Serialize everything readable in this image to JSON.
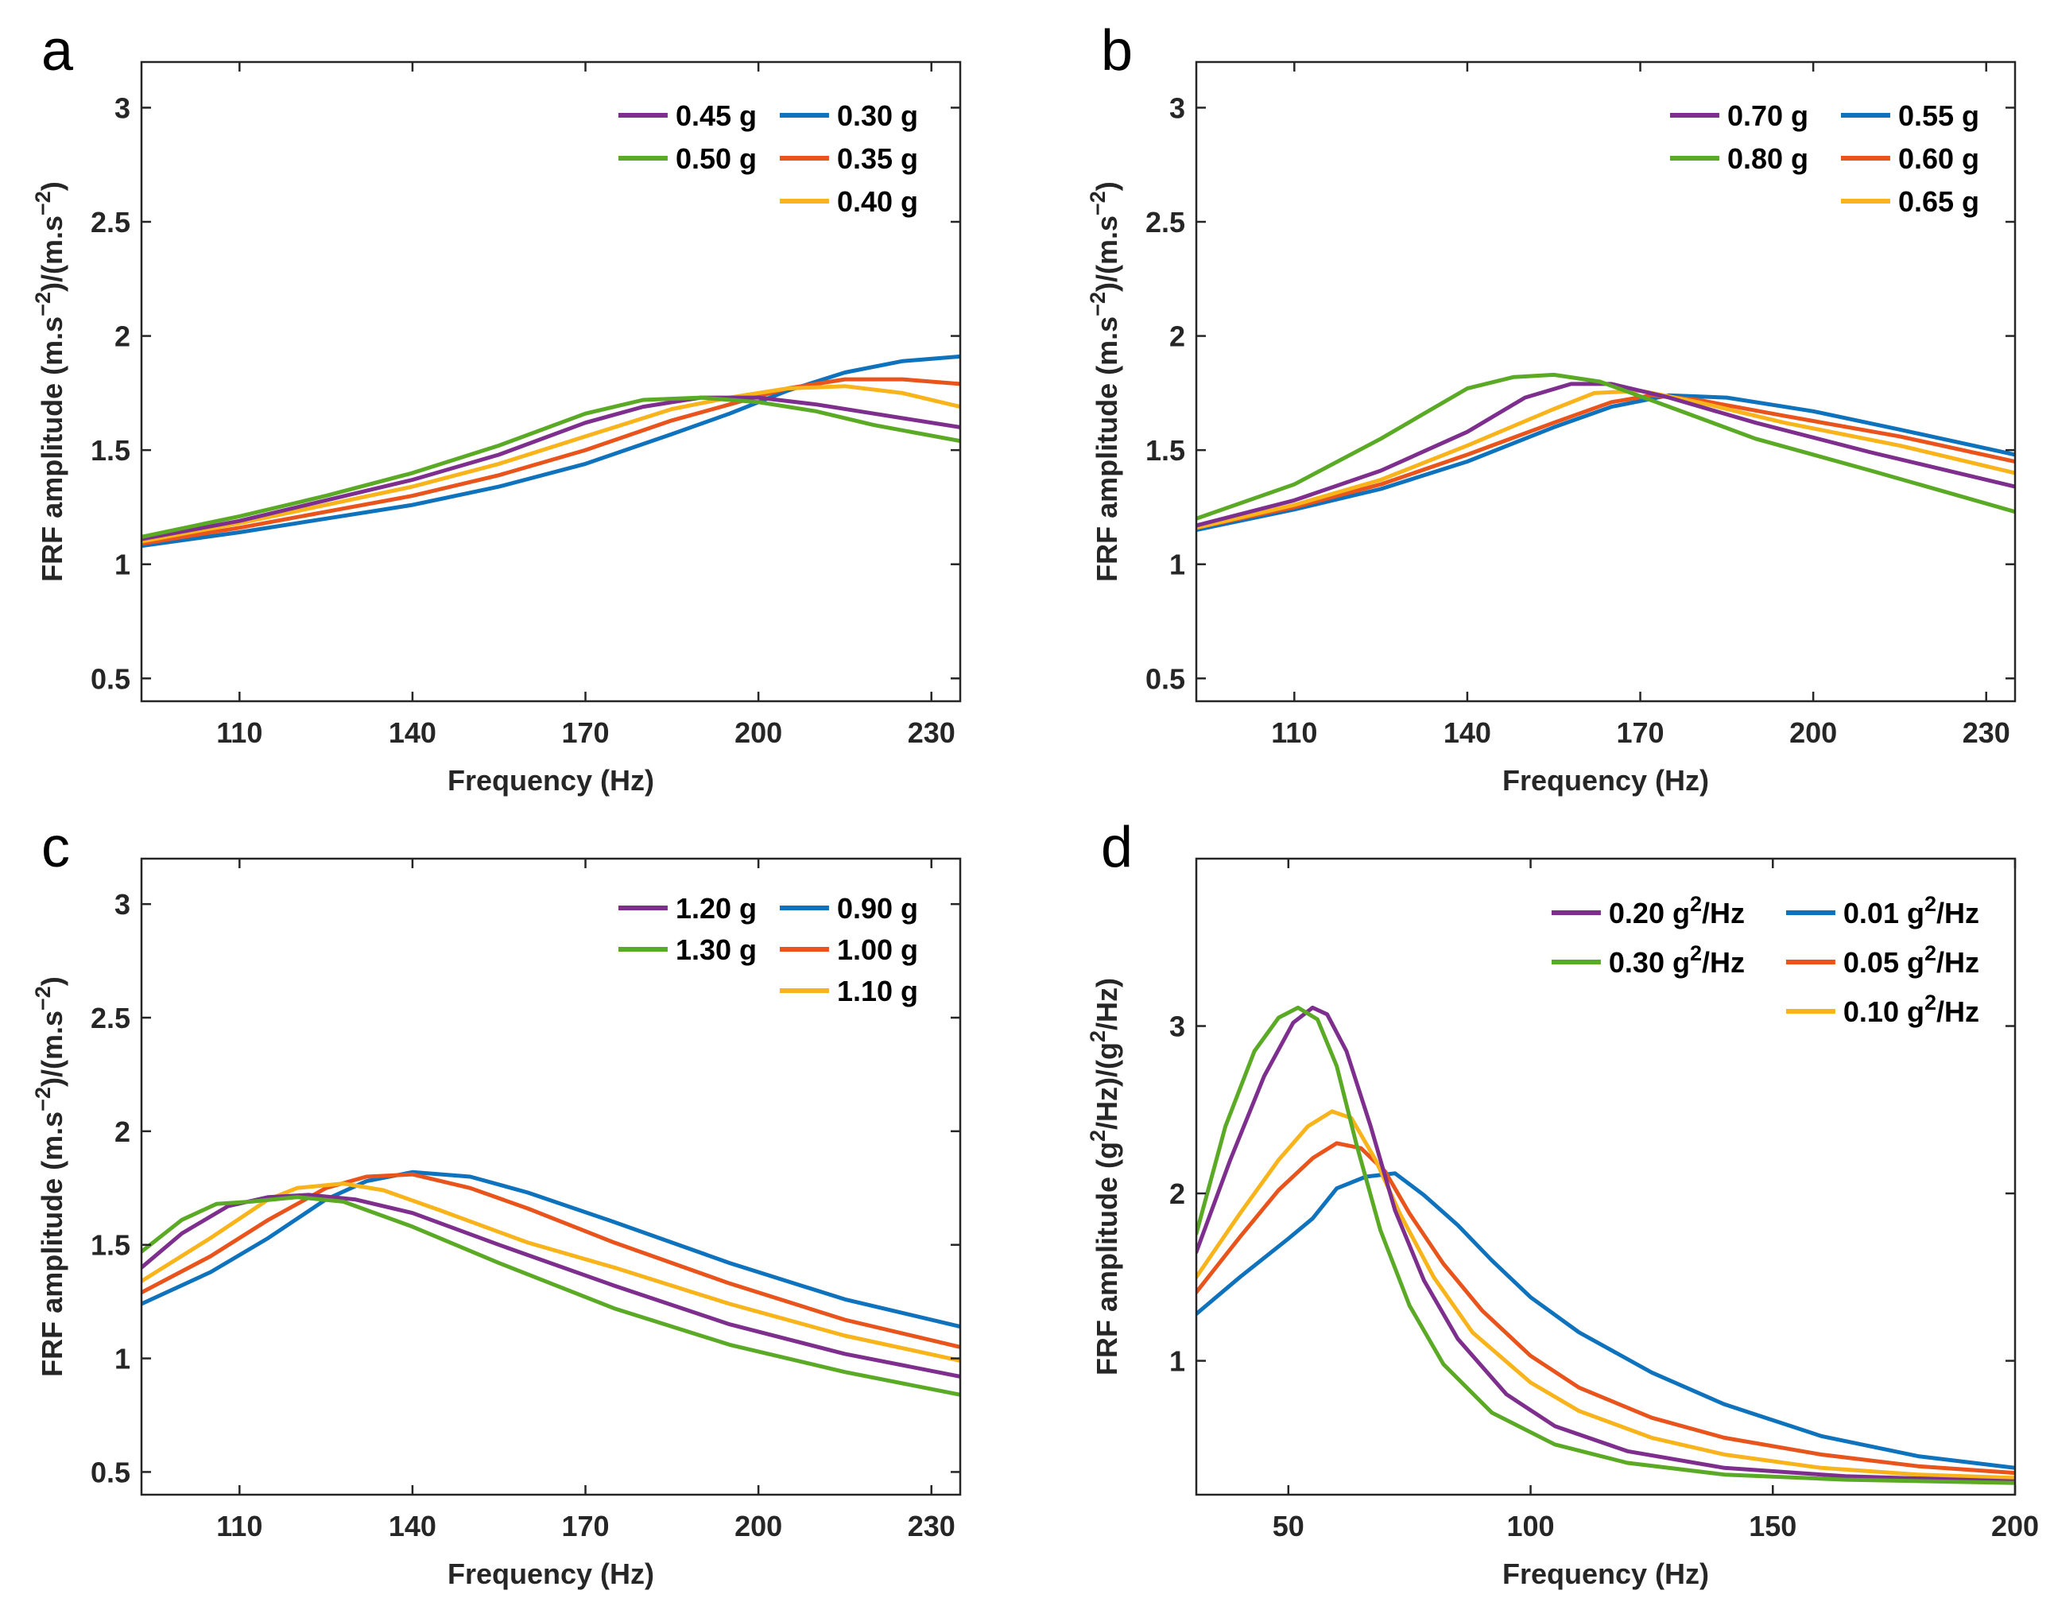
{
  "figure": {
    "description_free": true
  },
  "colors": {
    "purple": "#7E2F8E",
    "green": "#5BAA26",
    "blue": "#0E72BD",
    "red": "#E8541B",
    "yellow": "#F8B41A",
    "axis": "#262626"
  },
  "chart_data": [
    {
      "type": "line",
      "panel": "a",
      "xlabel": "Frequency (Hz)",
      "ylabel": "FRF amplitude (m.s⁻²)/(m.s⁻²)",
      "xlim": [
        93,
        235
      ],
      "ylim": [
        0.4,
        3.2
      ],
      "xticks": [
        110,
        140,
        170,
        200,
        230
      ],
      "yticks": [
        0.5,
        1,
        1.5,
        2,
        2.5,
        3
      ],
      "ytick_labels": [
        "0.5",
        "1",
        "1.5",
        "2",
        "2.5",
        "3"
      ],
      "legend": [
        {
          "label": "0.45 g",
          "color": "#7E2F8E",
          "col": 0,
          "row": 0
        },
        {
          "label": "0.50 g",
          "color": "#5BAA26",
          "col": 0,
          "row": 1
        },
        {
          "label": "0.30 g",
          "color": "#0E72BD",
          "col": 1,
          "row": 0
        },
        {
          "label": "0.35 g",
          "color": "#E8541B",
          "col": 1,
          "row": 1
        },
        {
          "label": "0.40 g",
          "color": "#F8B41A",
          "col": 1,
          "row": 2
        }
      ],
      "series": [
        {
          "name": "0.30 g",
          "color": "#0E72BD",
          "x": [
            93,
            110,
            125,
            140,
            155,
            170,
            185,
            195,
            205,
            215,
            225,
            235
          ],
          "y": [
            1.08,
            1.14,
            1.2,
            1.26,
            1.34,
            1.44,
            1.57,
            1.66,
            1.76,
            1.84,
            1.89,
            1.91
          ]
        },
        {
          "name": "0.35 g",
          "color": "#E8541B",
          "x": [
            93,
            110,
            125,
            140,
            155,
            170,
            185,
            195,
            205,
            215,
            225,
            235
          ],
          "y": [
            1.09,
            1.16,
            1.23,
            1.3,
            1.39,
            1.5,
            1.63,
            1.7,
            1.77,
            1.81,
            1.81,
            1.79
          ]
        },
        {
          "name": "0.40 g",
          "color": "#F8B41A",
          "x": [
            93,
            110,
            125,
            140,
            155,
            170,
            185,
            195,
            205,
            215,
            225,
            235
          ],
          "y": [
            1.1,
            1.18,
            1.26,
            1.34,
            1.44,
            1.56,
            1.68,
            1.73,
            1.77,
            1.78,
            1.75,
            1.69
          ]
        },
        {
          "name": "0.45 g",
          "color": "#7E2F8E",
          "x": [
            93,
            110,
            125,
            140,
            155,
            170,
            180,
            190,
            200,
            210,
            220,
            235
          ],
          "y": [
            1.11,
            1.19,
            1.28,
            1.37,
            1.48,
            1.62,
            1.69,
            1.73,
            1.73,
            1.7,
            1.66,
            1.6
          ]
        },
        {
          "name": "0.50 g",
          "color": "#5BAA26",
          "x": [
            93,
            110,
            125,
            140,
            155,
            170,
            180,
            190,
            200,
            210,
            220,
            235
          ],
          "y": [
            1.12,
            1.21,
            1.3,
            1.4,
            1.52,
            1.66,
            1.72,
            1.73,
            1.71,
            1.67,
            1.61,
            1.54
          ]
        }
      ]
    },
    {
      "type": "line",
      "panel": "b",
      "xlabel": "Frequency (Hz)",
      "ylabel": "FRF amplitude (m.s⁻²)/(m.s⁻²)",
      "xlim": [
        93,
        235
      ],
      "ylim": [
        0.4,
        3.2
      ],
      "xticks": [
        110,
        140,
        170,
        200,
        230
      ],
      "yticks": [
        0.5,
        1,
        1.5,
        2,
        2.5,
        3
      ],
      "ytick_labels": [
        "0.5",
        "1",
        "1.5",
        "2",
        "2.5",
        "3"
      ],
      "legend": [
        {
          "label": "0.70 g",
          "color": "#7E2F8E",
          "col": 0,
          "row": 0
        },
        {
          "label": "0.80 g",
          "color": "#5BAA26",
          "col": 0,
          "row": 1
        },
        {
          "label": "0.55 g",
          "color": "#0E72BD",
          "col": 1,
          "row": 0
        },
        {
          "label": "0.60 g",
          "color": "#E8541B",
          "col": 1,
          "row": 1
        },
        {
          "label": "0.65 g",
          "color": "#F8B41A",
          "col": 1,
          "row": 2
        }
      ],
      "series": [
        {
          "name": "0.55 g",
          "color": "#0E72BD",
          "x": [
            93,
            110,
            125,
            140,
            155,
            165,
            175,
            185,
            200,
            215,
            235
          ],
          "y": [
            1.15,
            1.24,
            1.33,
            1.45,
            1.6,
            1.69,
            1.74,
            1.73,
            1.67,
            1.59,
            1.48
          ]
        },
        {
          "name": "0.60 g",
          "color": "#E8541B",
          "x": [
            93,
            110,
            125,
            140,
            155,
            165,
            172,
            180,
            195,
            215,
            235
          ],
          "y": [
            1.16,
            1.25,
            1.35,
            1.48,
            1.62,
            1.71,
            1.74,
            1.72,
            1.65,
            1.56,
            1.45
          ]
        },
        {
          "name": "0.65 g",
          "color": "#F8B41A",
          "x": [
            93,
            110,
            125,
            140,
            155,
            162,
            170,
            180,
            195,
            215,
            235
          ],
          "y": [
            1.16,
            1.26,
            1.37,
            1.52,
            1.68,
            1.75,
            1.76,
            1.71,
            1.62,
            1.52,
            1.4
          ]
        },
        {
          "name": "0.70 g",
          "color": "#7E2F8E",
          "x": [
            93,
            110,
            125,
            140,
            150,
            158,
            165,
            175,
            190,
            210,
            235
          ],
          "y": [
            1.17,
            1.28,
            1.41,
            1.58,
            1.73,
            1.79,
            1.79,
            1.73,
            1.62,
            1.49,
            1.34
          ]
        },
        {
          "name": "0.80 g",
          "color": "#5BAA26",
          "x": [
            93,
            110,
            125,
            140,
            148,
            155,
            163,
            175,
            190,
            210,
            235
          ],
          "y": [
            1.2,
            1.35,
            1.55,
            1.77,
            1.82,
            1.83,
            1.8,
            1.69,
            1.55,
            1.41,
            1.23
          ]
        }
      ]
    },
    {
      "type": "line",
      "panel": "c",
      "xlabel": "Frequency (Hz)",
      "ylabel": "FRF amplitude (m.s⁻²)/(m.s⁻²)",
      "xlim": [
        93,
        235
      ],
      "ylim": [
        0.4,
        3.2
      ],
      "xticks": [
        110,
        140,
        170,
        200,
        230
      ],
      "yticks": [
        0.5,
        1,
        1.5,
        2,
        2.5,
        3
      ],
      "ytick_labels": [
        "0.5",
        "1",
        "1.5",
        "2",
        "2.5",
        "3"
      ],
      "legend": [
        {
          "label": "1.20 g",
          "color": "#7E2F8E",
          "col": 0,
          "row": 0
        },
        {
          "label": "1.30 g",
          "color": "#5BAA26",
          "col": 0,
          "row": 1
        },
        {
          "label": "0.90 g",
          "color": "#0E72BD",
          "col": 1,
          "row": 0
        },
        {
          "label": "1.00 g",
          "color": "#E8541B",
          "col": 1,
          "row": 1
        },
        {
          "label": "1.10 g",
          "color": "#F8B41A",
          "col": 1,
          "row": 2
        }
      ],
      "series": [
        {
          "name": "0.90 g",
          "color": "#0E72BD",
          "x": [
            93,
            105,
            115,
            125,
            132,
            140,
            150,
            160,
            175,
            195,
            215,
            235
          ],
          "y": [
            1.24,
            1.38,
            1.53,
            1.7,
            1.78,
            1.82,
            1.8,
            1.73,
            1.6,
            1.42,
            1.26,
            1.14
          ]
        },
        {
          "name": "1.00 g",
          "color": "#E8541B",
          "x": [
            93,
            105,
            115,
            125,
            132,
            140,
            150,
            160,
            175,
            195,
            215,
            235
          ],
          "y": [
            1.29,
            1.45,
            1.61,
            1.75,
            1.8,
            1.81,
            1.75,
            1.66,
            1.51,
            1.33,
            1.17,
            1.05
          ]
        },
        {
          "name": "1.10 g",
          "color": "#F8B41A",
          "x": [
            93,
            105,
            115,
            120,
            128,
            135,
            145,
            160,
            175,
            195,
            215,
            235
          ],
          "y": [
            1.34,
            1.53,
            1.7,
            1.75,
            1.77,
            1.74,
            1.65,
            1.51,
            1.4,
            1.24,
            1.1,
            0.99
          ]
        },
        {
          "name": "1.20 g",
          "color": "#7E2F8E",
          "x": [
            93,
            100,
            108,
            115,
            122,
            130,
            140,
            155,
            175,
            195,
            215,
            235
          ],
          "y": [
            1.4,
            1.55,
            1.67,
            1.71,
            1.72,
            1.7,
            1.64,
            1.5,
            1.32,
            1.15,
            1.02,
            0.92
          ]
        },
        {
          "name": "1.30 g",
          "color": "#5BAA26",
          "x": [
            93,
            100,
            106,
            112,
            120,
            128,
            140,
            155,
            175,
            195,
            215,
            235
          ],
          "y": [
            1.47,
            1.61,
            1.68,
            1.69,
            1.71,
            1.69,
            1.58,
            1.42,
            1.22,
            1.06,
            0.94,
            0.84
          ]
        }
      ]
    },
    {
      "type": "line",
      "panel": "d",
      "xlabel": "Frequency (Hz)",
      "ylabel": "FRF amplitude (g²/Hz)/(g²/Hz)",
      "xlim": [
        31,
        200
      ],
      "ylim": [
        0.2,
        4.0
      ],
      "xticks": [
        50,
        100,
        150,
        200
      ],
      "yticks": [
        1,
        2,
        3
      ],
      "ytick_labels": [
        "1",
        "2",
        "3"
      ],
      "legend": [
        {
          "label": "0.20 g²/Hz",
          "color": "#7E2F8E",
          "col": 0,
          "row": 0
        },
        {
          "label": "0.30 g²/Hz",
          "color": "#5BAA26",
          "col": 0,
          "row": 1
        },
        {
          "label": "0.01 g²/Hz",
          "color": "#0E72BD",
          "col": 1,
          "row": 0
        },
        {
          "label": "0.05 g²/Hz",
          "color": "#E8541B",
          "col": 1,
          "row": 1
        },
        {
          "label": "0.10 g²/Hz",
          "color": "#F8B41A",
          "col": 1,
          "row": 2
        }
      ],
      "series": [
        {
          "name": "0.01 g²/Hz",
          "color": "#0E72BD",
          "x": [
            31,
            40,
            50,
            55,
            60,
            66,
            72,
            78,
            85,
            92,
            100,
            110,
            125,
            140,
            160,
            180,
            200
          ],
          "y": [
            1.28,
            1.5,
            1.73,
            1.85,
            2.03,
            2.1,
            2.12,
            1.99,
            1.81,
            1.6,
            1.38,
            1.17,
            0.93,
            0.74,
            0.55,
            0.43,
            0.36
          ]
        },
        {
          "name": "0.05 g²/Hz",
          "color": "#E8541B",
          "x": [
            31,
            40,
            48,
            55,
            60,
            65,
            70,
            75,
            82,
            90,
            100,
            110,
            125,
            140,
            160,
            180,
            200
          ],
          "y": [
            1.41,
            1.74,
            2.02,
            2.21,
            2.3,
            2.27,
            2.13,
            1.88,
            1.58,
            1.3,
            1.03,
            0.84,
            0.66,
            0.54,
            0.44,
            0.37,
            0.33
          ]
        },
        {
          "name": "0.10 g²/Hz",
          "color": "#F8B41A",
          "x": [
            31,
            40,
            48,
            54,
            59,
            63,
            68,
            73,
            80,
            88,
            100,
            110,
            125,
            140,
            160,
            180,
            200
          ],
          "y": [
            1.5,
            1.88,
            2.2,
            2.4,
            2.49,
            2.45,
            2.2,
            1.88,
            1.5,
            1.17,
            0.87,
            0.7,
            0.54,
            0.44,
            0.36,
            0.32,
            0.3
          ]
        },
        {
          "name": "0.20 g²/Hz",
          "color": "#7E2F8E",
          "x": [
            31,
            38,
            45,
            51,
            55,
            58,
            62,
            67,
            72,
            78,
            85,
            95,
            105,
            120,
            140,
            165,
            200
          ],
          "y": [
            1.65,
            2.2,
            2.7,
            3.02,
            3.11,
            3.07,
            2.85,
            2.4,
            1.9,
            1.48,
            1.13,
            0.8,
            0.61,
            0.46,
            0.36,
            0.31,
            0.28
          ]
        },
        {
          "name": "0.30 g²/Hz",
          "color": "#5BAA26",
          "x": [
            31,
            37,
            43,
            48,
            52,
            56,
            60,
            64,
            69,
            75,
            82,
            92,
            105,
            120,
            140,
            165,
            200
          ],
          "y": [
            1.76,
            2.4,
            2.85,
            3.05,
            3.11,
            3.04,
            2.76,
            2.3,
            1.78,
            1.33,
            0.98,
            0.69,
            0.5,
            0.39,
            0.32,
            0.29,
            0.27
          ]
        }
      ]
    }
  ]
}
